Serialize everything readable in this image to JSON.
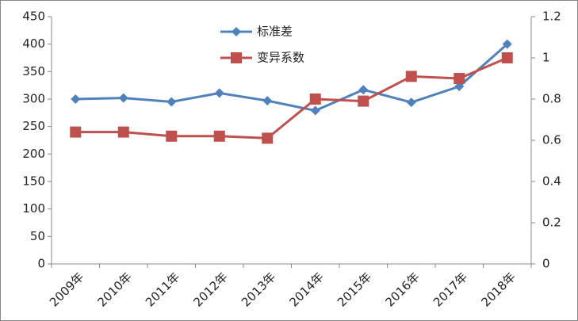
{
  "chart_data": {
    "type": "line",
    "categories": [
      "2009年",
      "2010年",
      "2011年",
      "2012年",
      "2013年",
      "2014年",
      "2015年",
      "2016年",
      "2017年",
      "2018年"
    ],
    "series": [
      {
        "name": "标准差",
        "color": "#4f81bd",
        "marker": "diamond",
        "values": [
          300,
          302,
          295,
          311,
          297,
          279,
          317,
          294,
          323,
          400
        ]
      },
      {
        "name": "变异系数",
        "color": "#c0504d",
        "marker": "square",
        "axis": "y2",
        "values": [
          0.64,
          0.64,
          0.62,
          0.62,
          0.61,
          0.8,
          0.79,
          0.91,
          0.9,
          1.0
        ]
      }
    ],
    "ylim": [
      0,
      450
    ],
    "yticks": [
      0,
      50,
      100,
      150,
      200,
      250,
      300,
      350,
      400,
      450
    ],
    "y2lim": [
      0,
      1.2
    ],
    "y2ticks": [
      0,
      0.2,
      0.4,
      0.6,
      0.8,
      1,
      1.2
    ],
    "grid": false
  }
}
